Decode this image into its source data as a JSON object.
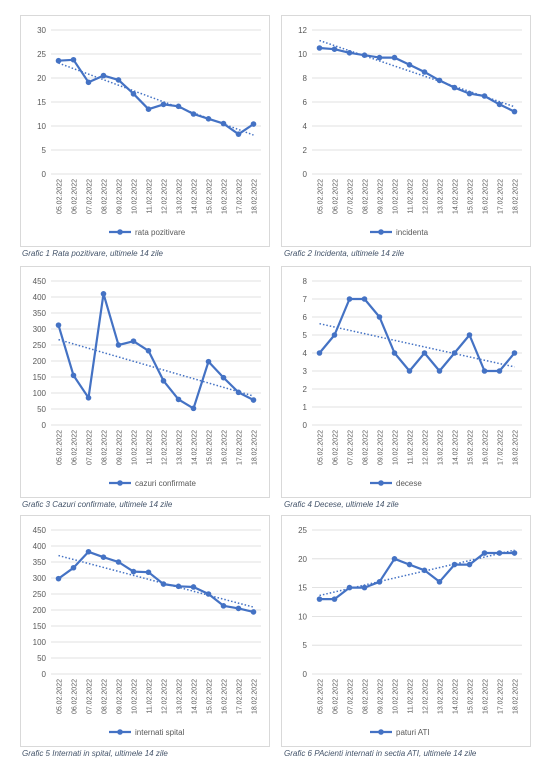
{
  "colors": {
    "series": "#4472c4",
    "grid": "#d9d9d9",
    "axis_text": "#595959"
  },
  "dates": [
    "05.02.2022",
    "06.02.2022",
    "07.02.2022",
    "08.02.2022",
    "09.02.2022",
    "10.02.2022",
    "11.02.2022",
    "12.02.2022",
    "13.02.2022",
    "14.02.2022",
    "15.02.2022",
    "16.02.2022",
    "17.02.2022",
    "18.02.2022"
  ],
  "captions": [
    "Grafic  1 Rata pozitivare, ultimele 14 zile",
    "Grafic  2 Incidenta, ultimele 14 zile",
    "Grafic  3 Cazuri confirmate, ultimele 14 zile",
    "Grafic  4 Decese, ultimele 14 zile",
    "Grafic  5 Internati in spital, ultimele 14 zile",
    "Grafic  6 PAcienti internati in sectia ATI, ultimele 14 zile"
  ],
  "chart_data": [
    {
      "type": "line",
      "legend": "rata pozitivare",
      "trendline": "linear",
      "grid": true,
      "legend_position": "bottom",
      "yticks": [
        0,
        5,
        10,
        15,
        20,
        25,
        30
      ],
      "ylim": [
        0,
        30
      ],
      "x": [
        "05.02.2022",
        "06.02.2022",
        "07.02.2022",
        "08.02.2022",
        "09.02.2022",
        "10.02.2022",
        "11.02.2022",
        "12.02.2022",
        "13.02.2022",
        "14.02.2022",
        "15.02.2022",
        "16.02.2022",
        "17.02.2022",
        "18.02.2022"
      ],
      "values": [
        23.6,
        23.8,
        19.1,
        20.5,
        19.6,
        16.7,
        13.5,
        14.5,
        14.1,
        12.5,
        11.5,
        10.5,
        8.3,
        10.4
      ]
    },
    {
      "type": "line",
      "legend": "incidenta",
      "trendline": "linear",
      "grid": true,
      "legend_position": "bottom",
      "yticks": [
        0,
        2,
        4,
        6,
        8,
        10,
        12
      ],
      "ylim": [
        0,
        12
      ],
      "x": [
        "05.02.2022",
        "06.02.2022",
        "07.02.2022",
        "08.02.2022",
        "09.02.2022",
        "10.02.2022",
        "11.02.2022",
        "12.02.2022",
        "13.02.2022",
        "14.02.2022",
        "15.02.2022",
        "16.02.2022",
        "17.02.2022",
        "18.02.2022"
      ],
      "values": [
        10.5,
        10.4,
        10.1,
        9.9,
        9.7,
        9.7,
        9.1,
        8.5,
        7.8,
        7.2,
        6.7,
        6.5,
        5.8,
        5.2
      ]
    },
    {
      "type": "line",
      "legend": "cazuri confirmate",
      "trendline": "linear",
      "grid": true,
      "legend_position": "bottom",
      "yticks": [
        0,
        50,
        100,
        150,
        200,
        250,
        300,
        350,
        400,
        450
      ],
      "ylim": [
        0,
        450
      ],
      "x": [
        "05.02.2022",
        "06.02.2022",
        "07.02.2022",
        "08.02.2022",
        "09.02.2022",
        "10.02.2022",
        "11.02.2022",
        "12.02.2022",
        "13.02.2022",
        "14.02.2022",
        "15.02.2022",
        "16.02.2022",
        "17.02.2022",
        "18.02.2022"
      ],
      "values": [
        312,
        155,
        85,
        410,
        250,
        262,
        232,
        138,
        80,
        52,
        198,
        148,
        102,
        78
      ]
    },
    {
      "type": "line",
      "legend": "decese",
      "trendline": "linear",
      "grid": true,
      "legend_position": "bottom",
      "yticks": [
        0,
        1,
        2,
        3,
        4,
        5,
        6,
        7,
        8
      ],
      "ylim": [
        0,
        8
      ],
      "x": [
        "05.02.2022",
        "06.02.2022",
        "07.02.2022",
        "08.02.2022",
        "09.02.2022",
        "10.02.2022",
        "11.02.2022",
        "12.02.2022",
        "13.02.2022",
        "14.02.2022",
        "15.02.2022",
        "16.02.2022",
        "17.02.2022",
        "18.02.2022"
      ],
      "values": [
        4,
        5,
        7,
        7,
        6,
        4,
        3,
        4,
        3,
        4,
        5,
        3,
        3,
        4
      ]
    },
    {
      "type": "line",
      "legend": "internati spital",
      "trendline": "linear",
      "grid": true,
      "legend_position": "bottom",
      "yticks": [
        0,
        50,
        100,
        150,
        200,
        250,
        300,
        350,
        400,
        450
      ],
      "ylim": [
        0,
        450
      ],
      "x": [
        "05.02.2022",
        "06.02.2022",
        "07.02.2022",
        "08.02.2022",
        "09.02.2022",
        "10.02.2022",
        "11.02.2022",
        "12.02.2022",
        "13.02.2022",
        "14.02.2022",
        "15.02.2022",
        "16.02.2022",
        "17.02.2022",
        "18.02.2022"
      ],
      "values": [
        298,
        332,
        382,
        365,
        350,
        320,
        318,
        281,
        274,
        272,
        250,
        213,
        205,
        194
      ]
    },
    {
      "type": "line",
      "legend": "paturi ATI",
      "trendline": "linear",
      "grid": true,
      "legend_position": "bottom",
      "yticks": [
        0,
        5,
        10,
        15,
        20,
        25
      ],
      "ylim": [
        0,
        25
      ],
      "x": [
        "05.02.2022",
        "06.02.2022",
        "07.02.2022",
        "08.02.2022",
        "09.02.2022",
        "10.02.2022",
        "11.02.2022",
        "12.02.2022",
        "13.02.2022",
        "14.02.2022",
        "15.02.2022",
        "16.02.2022",
        "17.02.2022",
        "18.02.2022"
      ],
      "values": [
        13,
        13,
        15,
        15,
        16,
        20,
        19,
        18,
        16,
        19,
        19,
        21,
        21,
        21
      ]
    }
  ]
}
